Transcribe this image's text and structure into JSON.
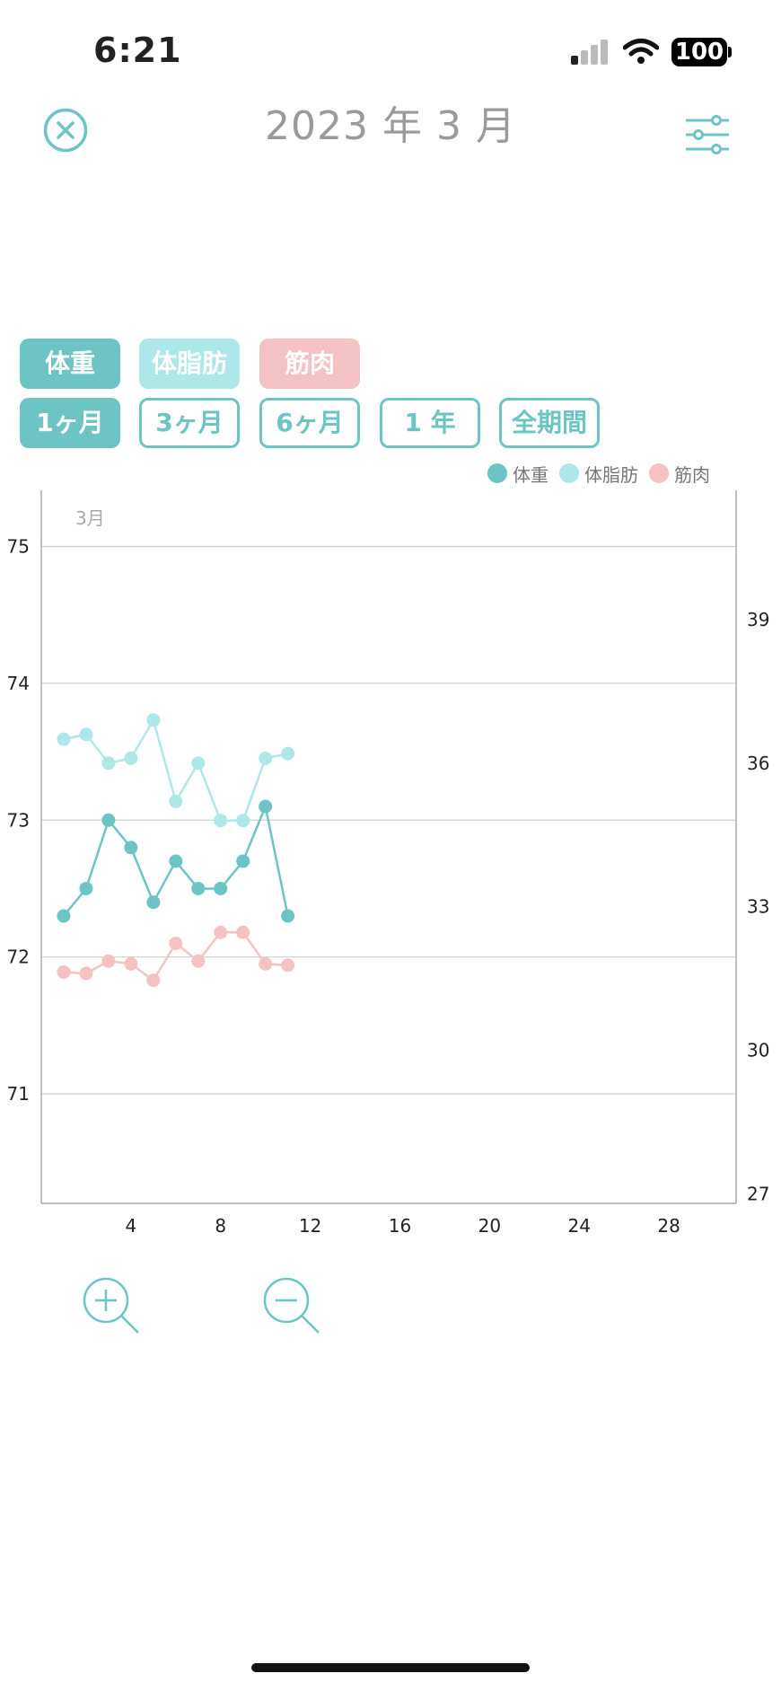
{
  "status": {
    "time": "6:21",
    "battery": "100"
  },
  "header": {
    "title": "2023 年 3 月",
    "close_icon": "close-circle-icon",
    "settings_icon": "sliders-icon"
  },
  "metric_tabs": [
    {
      "label": "体重",
      "color": "#6cc5c4"
    },
    {
      "label": "体脂肪",
      "color": "#aee7e8"
    },
    {
      "label": "筋肉",
      "color": "#f5c2c3"
    }
  ],
  "period_tabs": [
    {
      "label": "1ヶ月",
      "active": true
    },
    {
      "label": "3ヶ月",
      "active": false
    },
    {
      "label": "6ヶ月",
      "active": false
    },
    {
      "label": "1 年",
      "active": false
    },
    {
      "label": "全期間",
      "active": false
    }
  ],
  "legend": [
    {
      "label": "体重",
      "color": "#6cc5c4"
    },
    {
      "label": "体脂肪",
      "color": "#aee7e8"
    },
    {
      "label": "筋肉",
      "color": "#f5c2c3"
    }
  ],
  "chart_data": {
    "type": "line",
    "month_label": "3月",
    "x_ticks": [
      "4",
      "8",
      "12",
      "16",
      "20",
      "24",
      "28"
    ],
    "xlim": [
      0,
      31
    ],
    "y_left": {
      "ticks": [
        "75",
        "74",
        "73",
        "72",
        "71"
      ],
      "lim": [
        70.2,
        75.2
      ]
    },
    "y_right": {
      "ticks": [
        "39",
        "36",
        "33",
        "30",
        "27"
      ],
      "lim": [
        26.8,
        41.1
      ]
    },
    "grid": true,
    "series": [
      {
        "name": "体重",
        "axis": "left",
        "color": "#6cc5c4",
        "x": [
          1,
          2,
          3,
          4,
          5,
          6,
          7,
          8,
          9,
          10,
          11
        ],
        "values": [
          72.3,
          72.5,
          73.0,
          72.8,
          72.4,
          72.7,
          72.5,
          72.5,
          72.7,
          73.1,
          72.3
        ]
      },
      {
        "name": "体脂肪",
        "axis": "right",
        "color": "#aee7e8",
        "x": [
          1,
          2,
          3,
          4,
          5,
          6,
          7,
          8,
          9,
          10,
          11
        ],
        "values": [
          36.5,
          36.6,
          36.0,
          36.1,
          36.9,
          35.2,
          36.0,
          34.8,
          34.8,
          36.1,
          36.2
        ]
      },
      {
        "name": "筋肉",
        "axis": "left",
        "color": "#f5c2c3",
        "x": [
          1,
          2,
          3,
          4,
          5,
          6,
          7,
          8,
          9,
          10,
          11
        ],
        "values": [
          71.89,
          71.88,
          71.97,
          71.95,
          71.83,
          72.1,
          71.97,
          72.18,
          72.18,
          71.95,
          71.94
        ]
      }
    ]
  },
  "zoom": {
    "zoom_in_icon": "zoom-in-icon",
    "zoom_out_icon": "zoom-out-icon"
  }
}
